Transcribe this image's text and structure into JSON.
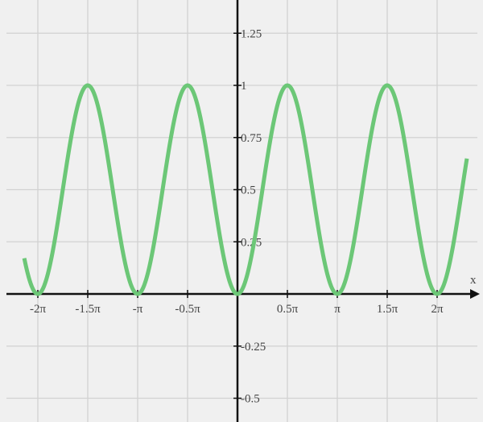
{
  "chart_data": {
    "type": "line",
    "function": "sin^2(x)",
    "title": "",
    "xlabel": "x",
    "ylabel": "",
    "xlim": [
      -6.71,
      7.22
    ],
    "ylim": [
      -0.6,
      1.45
    ],
    "grid": true,
    "x_ticks": [
      {
        "value": -6.2832,
        "label": "-2π"
      },
      {
        "value": -4.7124,
        "label": "-1.5π"
      },
      {
        "value": -3.1416,
        "label": "-π"
      },
      {
        "value": -1.5708,
        "label": "-0.5π"
      },
      {
        "value": 1.5708,
        "label": "0.5π"
      },
      {
        "value": 3.1416,
        "label": "π"
      },
      {
        "value": 4.7124,
        "label": "1.5π"
      },
      {
        "value": 6.2832,
        "label": "2π"
      }
    ],
    "y_ticks": [
      {
        "value": 1.25,
        "label": "1.25"
      },
      {
        "value": 1,
        "label": "1"
      },
      {
        "value": 0.75,
        "label": "0.75"
      },
      {
        "value": 0.5,
        "label": "0.5"
      },
      {
        "value": 0.25,
        "label": "0.25"
      },
      {
        "value": -0.25,
        "label": "-0.25"
      },
      {
        "value": -0.5,
        "label": "-0.5"
      }
    ],
    "series": [
      {
        "color": "#6cc777",
        "x_range": [
          -6.71,
          7.22
        ]
      }
    ],
    "colors": {
      "background": "#f0f0f0",
      "grid": "#d2d2d2",
      "axis": "#111111"
    }
  }
}
